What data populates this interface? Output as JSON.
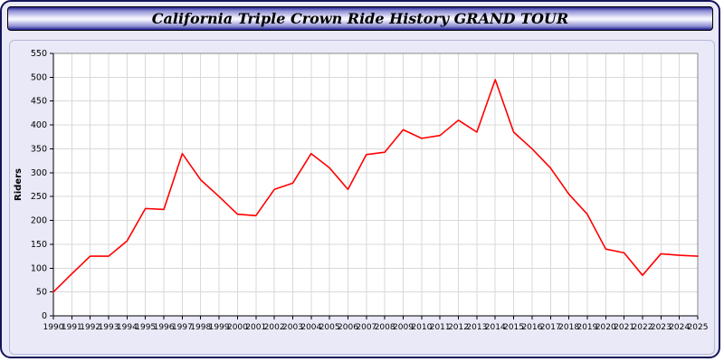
{
  "page": {
    "title": "California Triple Crown Ride History GRAND TOUR"
  },
  "chart_data": {
    "type": "line",
    "title": "California Triple Crown Ride History GRAND TOUR",
    "xlabel": "",
    "ylabel": "Riders",
    "ylim": [
      0,
      550
    ],
    "ytick_step": 50,
    "grid": true,
    "legend_position": "none",
    "x": [
      1990,
      1991,
      1992,
      1993,
      1994,
      1995,
      1996,
      1997,
      1998,
      1999,
      2000,
      2001,
      2002,
      2003,
      2004,
      2005,
      2006,
      2007,
      2008,
      2009,
      2010,
      2011,
      2012,
      2013,
      2014,
      2015,
      2016,
      2017,
      2018,
      2019,
      2020,
      2021,
      2022,
      2023,
      2024,
      2025
    ],
    "series": [
      {
        "name": "Riders",
        "color": "#ff0000",
        "values": [
          50,
          88,
          125,
          125,
          157,
          225,
          223,
          340,
          285,
          250,
          213,
          210,
          265,
          278,
          340,
          310,
          265,
          338,
          343,
          390,
          372,
          378,
          410,
          385,
          495,
          385,
          350,
          310,
          255,
          213,
          140,
          132,
          85,
          130,
          127,
          125
        ]
      }
    ],
    "colors": {
      "line": "#ff0000",
      "plot_background": "#ffffff",
      "page_background": "#e9e9f8",
      "gridline": "#d9d9d9",
      "plot_border": "#8a8a8a",
      "axis": "#000000",
      "tick_text": "#000000"
    }
  }
}
